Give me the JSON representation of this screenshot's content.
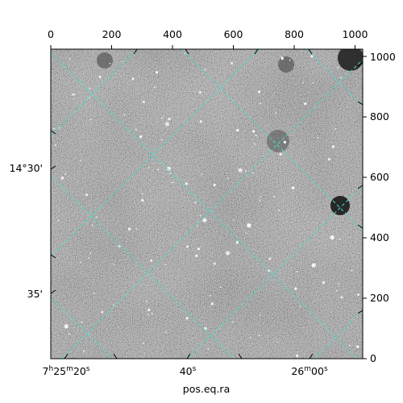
{
  "figure": {
    "xlabel": "pos.eq.ra",
    "pixel_x_ticks": [
      "0",
      "200",
      "400",
      "600",
      "800",
      "1000"
    ],
    "pixel_y_ticks": [
      "0",
      "200",
      "400",
      "600",
      "800",
      "1000"
    ],
    "ra_labels": {
      "first": {
        "h": "7",
        "m": "25",
        "s": "20"
      },
      "second": "40",
      "third": {
        "m": "26",
        "s": "00"
      }
    },
    "dec_labels": [
      "14°30'",
      "35'"
    ],
    "grid_color": "#40e0d0",
    "image_style": "grayscale noisy star field"
  }
}
